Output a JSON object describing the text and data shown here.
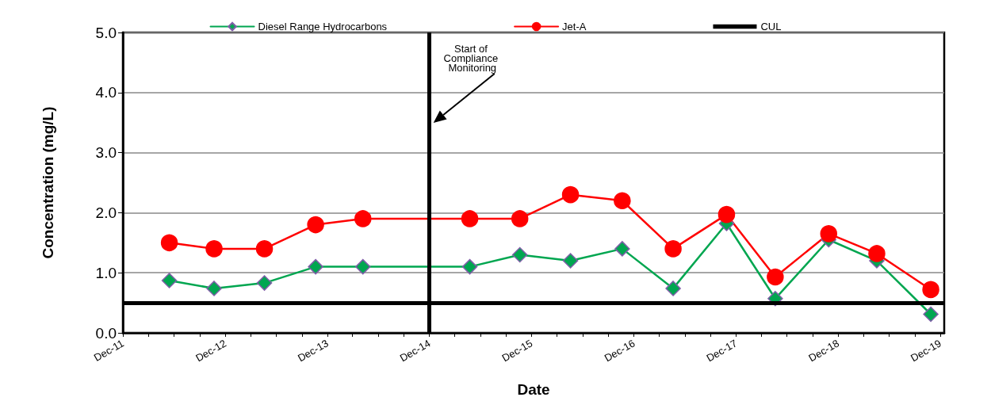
{
  "chart_data": {
    "type": "line",
    "xlabel": "Date",
    "ylabel": "Concentration (mg/L)",
    "x": [
      "2012-05-15",
      "2012-10-22",
      "2013-04-20",
      "2013-10-20",
      "2014-04-07",
      "2015-04-24",
      "2015-10-20",
      "2016-04-18",
      "2016-10-20",
      "2017-04-20",
      "2017-10-28",
      "2018-04-20",
      "2018-10-28",
      "2019-04-18",
      "2019-10-28"
    ],
    "series": [
      {
        "name": "Diesel Range Hydrocarbons",
        "color": "#00a650",
        "marker": "diamond",
        "values": [
          0.87,
          0.74,
          0.83,
          1.1,
          1.1,
          1.1,
          1.3,
          1.2,
          1.4,
          0.74,
          1.82,
          0.57,
          1.55,
          1.2,
          0.31
        ]
      },
      {
        "name": "Jet-A",
        "color": "#ff0000",
        "marker": "circle",
        "values": [
          1.5,
          1.4,
          1.4,
          1.8,
          1.9,
          1.9,
          1.9,
          2.3,
          2.2,
          1.4,
          1.97,
          0.93,
          1.65,
          1.32,
          0.72
        ]
      }
    ],
    "xlim": [
      "2011-12-01",
      "2019-12-15"
    ],
    "xticks": [
      {
        "value": "2011-12-01",
        "label": "Dec-11"
      },
      {
        "value": "2012-03-01",
        "label": null
      },
      {
        "value": "2012-06-01",
        "label": null
      },
      {
        "value": "2012-09-01",
        "label": null
      },
      {
        "value": "2012-12-01",
        "label": "Dec-12"
      },
      {
        "value": "2013-03-01",
        "label": null
      },
      {
        "value": "2013-06-01",
        "label": null
      },
      {
        "value": "2013-09-01",
        "label": null
      },
      {
        "value": "2013-12-01",
        "label": "Dec-13"
      },
      {
        "value": "2014-03-01",
        "label": null
      },
      {
        "value": "2014-06-01",
        "label": null
      },
      {
        "value": "2014-09-01",
        "label": null
      },
      {
        "value": "2014-12-01",
        "label": "Dec-14"
      },
      {
        "value": "2015-03-01",
        "label": null
      },
      {
        "value": "2015-06-01",
        "label": null
      },
      {
        "value": "2015-09-01",
        "label": null
      },
      {
        "value": "2015-12-01",
        "label": "Dec-15"
      },
      {
        "value": "2016-03-01",
        "label": null
      },
      {
        "value": "2016-06-01",
        "label": null
      },
      {
        "value": "2016-09-01",
        "label": null
      },
      {
        "value": "2016-12-01",
        "label": "Dec-16"
      },
      {
        "value": "2017-03-01",
        "label": null
      },
      {
        "value": "2017-06-01",
        "label": null
      },
      {
        "value": "2017-09-01",
        "label": null
      },
      {
        "value": "2017-12-01",
        "label": "Dec-17"
      },
      {
        "value": "2018-03-01",
        "label": null
      },
      {
        "value": "2018-06-01",
        "label": null
      },
      {
        "value": "2018-09-01",
        "label": null
      },
      {
        "value": "2018-12-01",
        "label": "Dec-18"
      },
      {
        "value": "2019-03-01",
        "label": null
      },
      {
        "value": "2019-06-01",
        "label": null
      },
      {
        "value": "2019-09-01",
        "label": null
      },
      {
        "value": "2019-12-01",
        "label": "Dec-19"
      }
    ],
    "ylim": [
      0,
      5
    ],
    "yticks": [
      {
        "value": 0,
        "label": "0.0"
      },
      {
        "value": 1,
        "label": "1.0"
      },
      {
        "value": 2,
        "label": "2.0"
      },
      {
        "value": 3,
        "label": "3.0"
      },
      {
        "value": 4,
        "label": "4.0"
      },
      {
        "value": 5,
        "label": "5.0"
      }
    ],
    "ref_lines": [
      {
        "axis": "y",
        "value": 0.5,
        "label": "CUL",
        "color": "#000000"
      },
      {
        "axis": "x",
        "value": "2014-12-01",
        "color": "#000000"
      }
    ],
    "annotations": [
      "Start of Compliance Monitoring"
    ],
    "grid": "y",
    "legend": "top"
  }
}
